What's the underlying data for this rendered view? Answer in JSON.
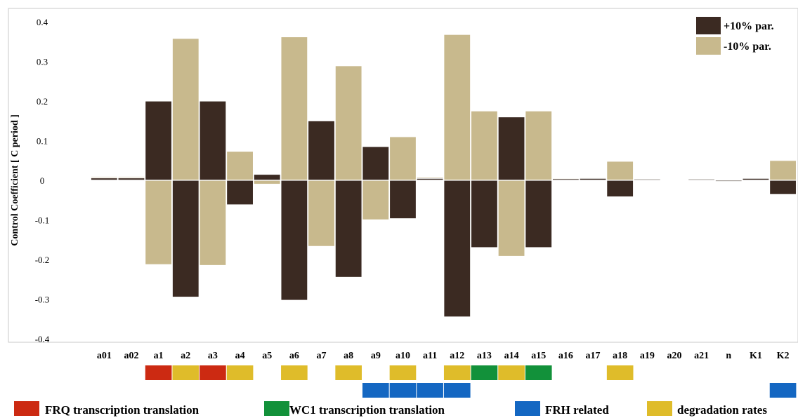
{
  "chart_data": {
    "type": "bar",
    "title": "",
    "ylabel": "Control Coefficient [ C period ]",
    "ylim": [
      -0.42,
      0.42
    ],
    "yticks": [
      "0.4",
      "0.3",
      "0.2",
      "0.1",
      "0",
      "-0.1",
      "-0.2",
      "-0.3",
      "-0.4"
    ],
    "ytick_values": [
      0.4,
      0.3,
      0.2,
      0.1,
      0,
      -0.1,
      -0.2,
      -0.3,
      -0.4
    ],
    "categories": [
      "a01",
      "a02",
      "a1",
      "a2",
      "a3",
      "a4",
      "a5",
      "a6",
      "a7",
      "a8",
      "a9",
      "a10",
      "a11",
      "a12",
      "a13",
      "a14",
      "a15",
      "a16",
      "a17",
      "a18",
      "a19",
      "a20",
      "a21",
      "n",
      "K1",
      "K2"
    ],
    "series": [
      {
        "name": "+10% par.",
        "color": "#3b2a22",
        "values": [
          0.006,
          0.006,
          0.2,
          -0.295,
          0.2,
          -0.062,
          0.015,
          -0.303,
          0.15,
          -0.245,
          0.085,
          -0.097,
          0.005,
          -0.345,
          -0.17,
          0.16,
          -0.17,
          0.004,
          0.005,
          -0.042,
          0.003,
          0.002,
          0.003,
          -0.003,
          0.005,
          -0.036
        ]
      },
      {
        "name": "-10% par.",
        "color": "#c8b98d",
        "values": [
          0.009,
          0.009,
          -0.213,
          0.358,
          -0.215,
          0.073,
          -0.01,
          0.362,
          -0.167,
          0.289,
          -0.1,
          0.11,
          0.008,
          0.368,
          0.175,
          -0.192,
          0.175,
          0.006,
          0.007,
          0.048,
          0.004,
          0.003,
          0.004,
          -0.004,
          0.006,
          0.05
        ]
      }
    ],
    "legend": "top-right",
    "grid": false
  },
  "groups": {
    "legend": [
      {
        "key": "frq",
        "label": "FRQ transcription translation",
        "color": "#cc2a12"
      },
      {
        "key": "wc1",
        "label": "WC1 transcription translation",
        "color": "#12913a"
      },
      {
        "key": "frh",
        "label": "FRH related",
        "color": "#1467c2"
      },
      {
        "key": "deg",
        "label": "degradation rates",
        "color": "#dfbc2a"
      }
    ],
    "row1": [
      "",
      "",
      "frq",
      "deg",
      "frq",
      "deg",
      "",
      "deg",
      "",
      "deg",
      "",
      "deg",
      "",
      "deg",
      "wc1",
      "deg",
      "wc1",
      "",
      "",
      "deg",
      "",
      "",
      "",
      "",
      "",
      ""
    ],
    "row2": [
      "",
      "",
      "",
      "",
      "",
      "",
      "",
      "",
      "",
      "",
      "frh",
      "frh",
      "frh",
      "frh",
      "",
      "",
      "",
      "",
      "",
      "",
      "",
      "",
      "",
      "",
      "",
      "frh"
    ]
  }
}
